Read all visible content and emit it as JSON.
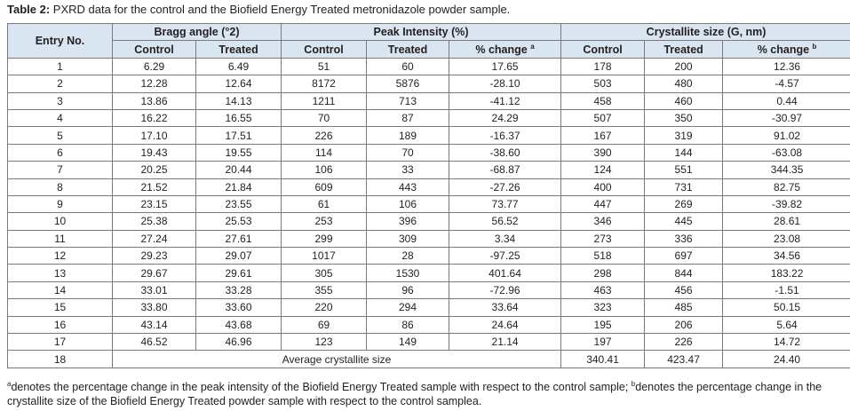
{
  "caption": {
    "label": "Table 2:",
    "text": " PXRD data for the control and the Biofield Energy Treated metronidazole powder sample."
  },
  "headers": {
    "entry": "Entry No.",
    "bragg": "Bragg angle (°2)",
    "peak": "Peak Intensity (%)",
    "cryst": "Crystallite size (G, nm)",
    "control": "Control",
    "treated": "Treated",
    "pct_change": "% change",
    "sup_a": "a",
    "sup_b": "b"
  },
  "rows": [
    [
      "1",
      "6.29",
      "6.49",
      "51",
      "60",
      "17.65",
      "178",
      "200",
      "12.36"
    ],
    [
      "2",
      "12.28",
      "12.64",
      "8172",
      "5876",
      "-28.10",
      "503",
      "480",
      "-4.57"
    ],
    [
      "3",
      "13.86",
      "14.13",
      "1211",
      "713",
      "-41.12",
      "458",
      "460",
      "0.44"
    ],
    [
      "4",
      "16.22",
      "16.55",
      "70",
      "87",
      "24.29",
      "507",
      "350",
      "-30.97"
    ],
    [
      "5",
      "17.10",
      "17.51",
      "226",
      "189",
      "-16.37",
      "167",
      "319",
      "91.02"
    ],
    [
      "6",
      "19.43",
      "19.55",
      "114",
      "70",
      "-38.60",
      "390",
      "144",
      "-63.08"
    ],
    [
      "7",
      "20.25",
      "20.44",
      "106",
      "33",
      "-68.87",
      "124",
      "551",
      "344.35"
    ],
    [
      "8",
      "21.52",
      "21.84",
      "609",
      "443",
      "-27.26",
      "400",
      "731",
      "82.75"
    ],
    [
      "9",
      "23.15",
      "23.55",
      "61",
      "106",
      "73.77",
      "447",
      "269",
      "-39.82"
    ],
    [
      "10",
      "25.38",
      "25.53",
      "253",
      "396",
      "56.52",
      "346",
      "445",
      "28.61"
    ],
    [
      "11",
      "27.24",
      "27.61",
      "299",
      "309",
      "3.34",
      "273",
      "336",
      "23.08"
    ],
    [
      "12",
      "29.23",
      "29.07",
      "1017",
      "28",
      "-97.25",
      "518",
      "697",
      "34.56"
    ],
    [
      "13",
      "29.67",
      "29.61",
      "305",
      "1530",
      "401.64",
      "298",
      "844",
      "183.22"
    ],
    [
      "14",
      "33.01",
      "33.28",
      "355",
      "96",
      "-72.96",
      "463",
      "456",
      "-1.51"
    ],
    [
      "15",
      "33.80",
      "33.60",
      "220",
      "294",
      "33.64",
      "323",
      "485",
      "50.15"
    ],
    [
      "16",
      "43.14",
      "43.68",
      "69",
      "86",
      "24.64",
      "195",
      "206",
      "5.64"
    ],
    [
      "17",
      "46.52",
      "46.96",
      "123",
      "149",
      "21.14",
      "197",
      "226",
      "14.72"
    ]
  ],
  "summary": {
    "entry": "18",
    "label": "Average crystallite size",
    "control": "340.41",
    "treated": "423.47",
    "change": "24.40"
  },
  "footnote": {
    "sup_a": "a",
    "text_a": "denotes the percentage change in the peak intensity of the Biofield Energy Treated sample with respect to the control sample; ",
    "sup_b": "b",
    "text_b": "denotes the percentage change in the crystallite size of the Biofield Energy Treated powder sample with respect to the control samplea."
  },
  "colors": {
    "header_bg": "#d9e6f1",
    "border": "#7a7a7a"
  }
}
